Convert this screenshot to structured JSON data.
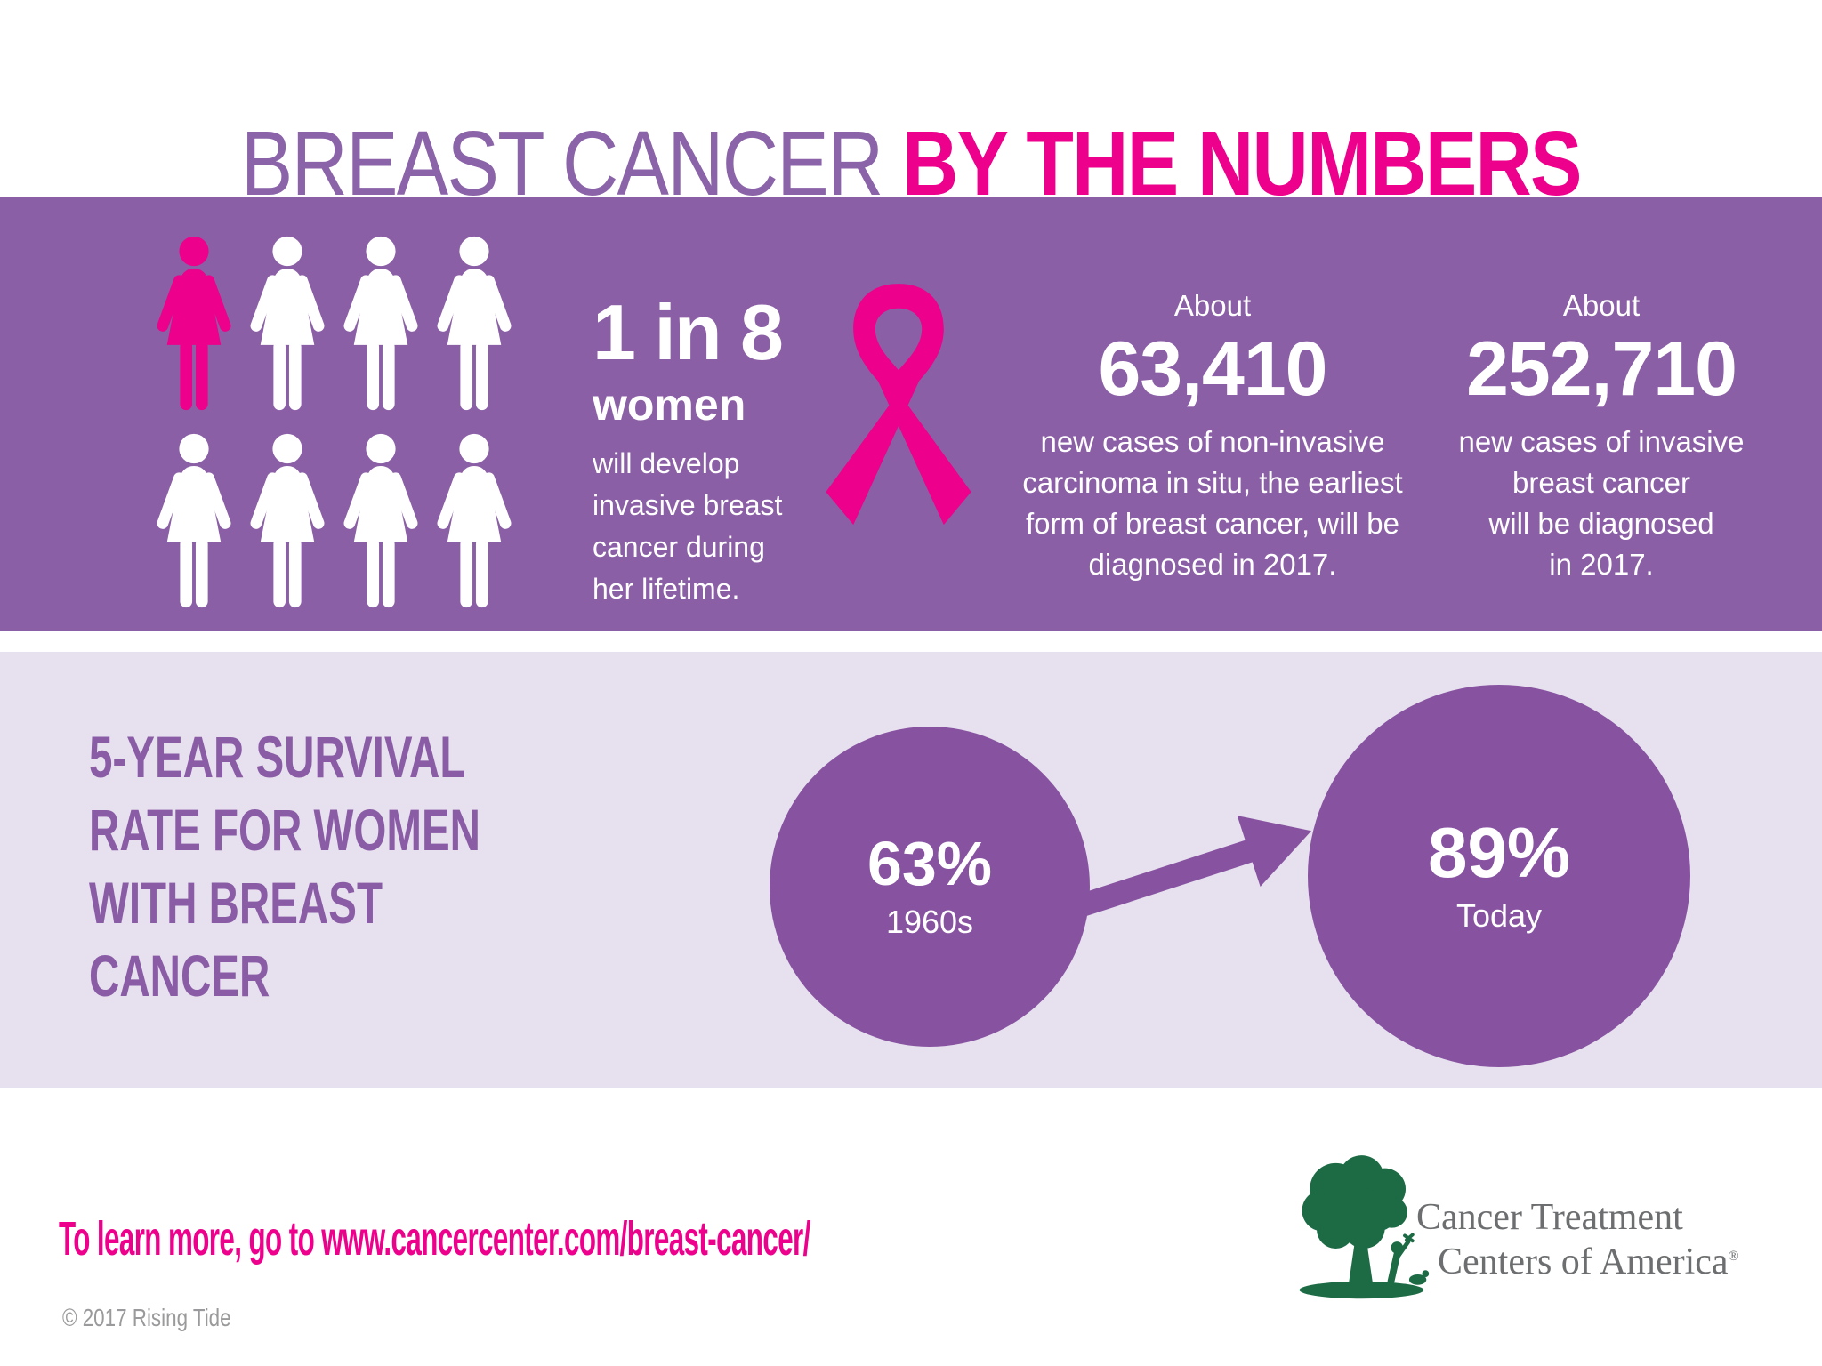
{
  "title": {
    "part1": "BREAST CANCER ",
    "part2": "BY THE NUMBERS"
  },
  "colors": {
    "band_purple": "#8b5fa6",
    "lavender": "#e7e0ef",
    "pink": "#ec008c",
    "title_purple": "#8a63a8",
    "heading_purple": "#8a5ca6",
    "circle_purple": "#8753a1",
    "copyright_gray": "#9a9a9c",
    "logo_gray": "#6c6e70",
    "logo_green": "#1c6b45"
  },
  "incidence": {
    "figures": {
      "rows": 2,
      "per_row": 4,
      "total": 8,
      "highlighted": {
        "row": 0,
        "index": 0
      },
      "highlight_color": "#ec008c",
      "default_color": "#ffffff"
    },
    "ratio": {
      "big": "1 in 8",
      "word": "women",
      "lines": [
        "will develop",
        "invasive breast",
        "cancer during",
        "her lifetime."
      ]
    },
    "stats": [
      {
        "about": "About",
        "number": "63,410",
        "lines": [
          "new cases of non-invasive",
          "carcinoma in situ, the earliest",
          "form of breast cancer, will be",
          "diagnosed in 2017."
        ]
      },
      {
        "about": "About",
        "number": "252,710",
        "lines": [
          "new cases of invasive",
          "breast cancer",
          "will be diagnosed",
          "in 2017."
        ]
      }
    ]
  },
  "survival": {
    "heading_lines": [
      "5-YEAR SURVIVAL",
      "RATE FOR WOMEN",
      "WITH BREAST",
      "CANCER"
    ],
    "before": {
      "value": "63%",
      "label": "1960s"
    },
    "after": {
      "value": "89%",
      "label": "Today"
    }
  },
  "footer": {
    "cta": "To learn more, go to www.cancercenter.com/breast-cancer/",
    "copyright": "© 2017 Rising Tide",
    "logo_line1": "Cancer Treatment",
    "logo_line2": "Centers of America",
    "logo_reg": "®"
  },
  "chart_data": [
    {
      "type": "pictogram",
      "title": "1 in 8 women will develop invasive breast cancer during her lifetime.",
      "categories": [
        "women who develop invasive breast cancer",
        "other women"
      ],
      "values": [
        1,
        7
      ],
      "total_icons": 8
    },
    {
      "type": "stat",
      "label": "About 63,410 new cases of non-invasive carcinoma in situ, the earliest form of breast cancer, will be diagnosed in 2017.",
      "value": 63410
    },
    {
      "type": "stat",
      "label": "About 252,710 new cases of invasive breast cancer will be diagnosed in 2017.",
      "value": 252710
    },
    {
      "type": "comparison",
      "title": "5-year survival rate for women with breast cancer",
      "categories": [
        "1960s",
        "Today"
      ],
      "values": [
        63,
        89
      ],
      "unit": "%"
    }
  ]
}
